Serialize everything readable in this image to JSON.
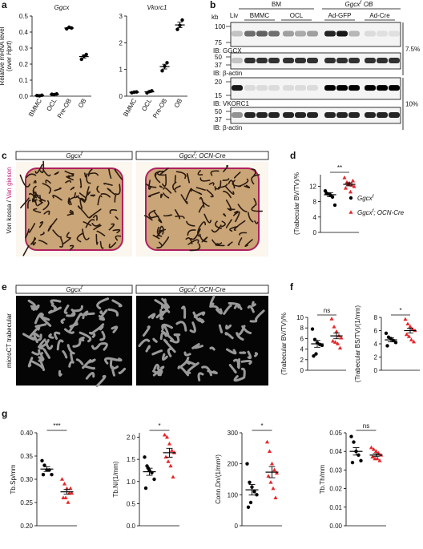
{
  "panel_letters": [
    "a",
    "b",
    "c",
    "d",
    "e",
    "f",
    "g"
  ],
  "chart_data": [
    {
      "type": "dot",
      "title": "Ggcx",
      "ylabel": "Relative mRNA level",
      "ylabel_sub": [
        "(over ",
        "Hprt",
        ")"
      ],
      "ylim": [
        0,
        0.5
      ],
      "yticks": [
        {
          "value": 0,
          "label": "0.0"
        },
        0.1,
        0.2,
        0.3,
        0.4,
        0.5
      ],
      "categories": [
        "BMMC",
        "OCL",
        "Pre-OB",
        "OB"
      ],
      "groups": [
        {
          "color": "#000000",
          "marker": "circle",
          "values": [
            0.004,
            0.002,
            0.006
          ],
          "mean": 0.004,
          "error": 0.001
        },
        {
          "color": "#000000",
          "marker": "circle",
          "values": [
            0.012,
            0.01,
            0.014
          ],
          "mean": 0.012,
          "error": 0.001
        },
        {
          "color": "#000000",
          "marker": "circle",
          "values": [
            0.42,
            0.43,
            0.425
          ],
          "mean": 0.425,
          "error": 0.003
        },
        {
          "color": "#000000",
          "marker": "circle",
          "values": [
            0.23,
            0.25,
            0.26
          ],
          "mean": 0.247,
          "error": 0.009
        }
      ]
    },
    {
      "type": "dot",
      "title": "Vkorc1",
      "ylim": [
        0,
        3
      ],
      "yticks": [
        0,
        1,
        2,
        3
      ],
      "categories": [
        "BMMC",
        "OCL",
        "Pre-OB",
        "OB"
      ],
      "groups": [
        {
          "color": "#000000",
          "marker": "circle",
          "values": [
            0.13,
            0.15,
            0.16
          ],
          "mean": 0.147,
          "error": 0.009
        },
        {
          "color": "#000000",
          "marker": "circle",
          "values": [
            0.12,
            0.17,
            0.2
          ],
          "mean": 0.163,
          "error": 0.023
        },
        {
          "color": "#000000",
          "marker": "circle",
          "values": [
            0.95,
            1.12,
            1.25
          ],
          "mean": 1.107,
          "error": 0.087
        },
        {
          "color": "#000000",
          "marker": "circle",
          "values": [
            2.5,
            2.65,
            2.85
          ],
          "mean": 2.667,
          "error": 0.101
        }
      ]
    },
    {
      "type": "dot",
      "ylabel": "(Trabecular BV/TV)/%",
      "ylim": [
        0,
        15
      ],
      "yticks": [
        0,
        4,
        8,
        12
      ],
      "significance": "**",
      "groups": [
        {
          "color": "#000000",
          "marker": "circle",
          "values": [
            10.8,
            10.0,
            9.8,
            9.2,
            7.1,
            10.2
          ],
          "mean": 9.8,
          "error": 0.55
        },
        {
          "color": "#e8262a",
          "marker": "triangle",
          "values": [
            14.2,
            13.0,
            12.8,
            12.3,
            11.9,
            11.5,
            12.5,
            10.5,
            13.4
          ],
          "mean": 12.5,
          "error": 0.4
        }
      ]
    },
    {
      "type": "dot",
      "ylabel": "(Trabecular BV/TV)/%",
      "ylim": [
        0,
        10
      ],
      "yticks": [
        0,
        2,
        4,
        6,
        8,
        10
      ],
      "significance": "ns",
      "groups": [
        {
          "color": "#000000",
          "marker": "circle",
          "values": [
            7.8,
            5.8,
            5.2,
            4.9,
            4.7,
            2.7,
            3.1
          ],
          "mean": 5.0,
          "error": 0.65
        },
        {
          "color": "#e8262a",
          "marker": "triangle",
          "values": [
            9.7,
            8.2,
            7.3,
            6.5,
            6.1,
            5.5,
            5.3,
            5.0,
            4.2
          ],
          "mean": 6.5,
          "error": 0.55
        }
      ]
    },
    {
      "type": "dot",
      "ylabel": "(Trabecular BS/TV)/(1/mm)",
      "ylim": [
        0,
        8
      ],
      "yticks": [
        0,
        2,
        4,
        6,
        8
      ],
      "significance": "*",
      "groups": [
        {
          "color": "#000000",
          "marker": "circle",
          "values": [
            5.6,
            5.0,
            4.8,
            4.5,
            4.2,
            3.7
          ],
          "mean": 4.6,
          "error": 0.3
        },
        {
          "color": "#e8262a",
          "marker": "triangle",
          "values": [
            7.7,
            7.0,
            6.6,
            6.2,
            6.0,
            5.4,
            5.1,
            4.6,
            4.3
          ],
          "mean": 6.0,
          "error": 0.35
        }
      ]
    },
    {
      "type": "dot",
      "ylabel": "Tb.Sp/mm",
      "ylim": [
        0.2,
        0.4
      ],
      "yticks": [
        {
          "value": 0.2,
          "label": "0.20"
        },
        0.25,
        {
          "value": 0.3,
          "label": "0.30"
        },
        0.35,
        {
          "value": 0.4,
          "label": "0.40"
        }
      ],
      "significance": "***",
      "groups": [
        {
          "color": "#000000",
          "marker": "circle",
          "values": [
            0.34,
            0.33,
            0.32,
            0.32,
            0.31,
            0.31
          ],
          "mean": 0.322,
          "error": 0.005
        },
        {
          "color": "#e8262a",
          "marker": "triangle",
          "values": [
            0.3,
            0.29,
            0.28,
            0.27,
            0.27,
            0.26,
            0.26,
            0.25,
            0.28
          ],
          "mean": 0.273,
          "error": 0.005
        }
      ]
    },
    {
      "type": "dot",
      "ylabel": "Tb.N/(1/mm)",
      "ylim": [
        0,
        2.1
      ],
      "yticks": [
        {
          "value": 0,
          "label": "0.0"
        },
        0.5,
        {
          "value": 1,
          "label": "1.0"
        },
        1.5,
        {
          "value": 2,
          "label": "2.0"
        }
      ],
      "significance": "*",
      "groups": [
        {
          "color": "#000000",
          "marker": "circle",
          "values": [
            1.55,
            1.35,
            1.25,
            1.2,
            1.05,
            0.85,
            1.3
          ],
          "mean": 1.22,
          "error": 0.08
        },
        {
          "color": "#e8262a",
          "marker": "triangle",
          "values": [
            2.05,
            2.0,
            1.85,
            1.7,
            1.65,
            1.55,
            1.45,
            1.35,
            1.1
          ],
          "mean": 1.65,
          "error": 0.1
        }
      ]
    },
    {
      "type": "dot",
      "ylabel": "Conn.Dn/(1/mm³)",
      "ylim": [
        0,
        300
      ],
      "yticks": [
        0,
        100,
        200,
        300
      ],
      "significance": "*",
      "groups": [
        {
          "color": "#000000",
          "marker": "circle",
          "values": [
            200,
            140,
            125,
            110,
            100,
            60,
            75
          ],
          "mean": 116,
          "error": 17
        },
        {
          "color": "#e8262a",
          "marker": "triangle",
          "values": [
            270,
            240,
            200,
            180,
            170,
            160,
            140,
            120,
            90
          ],
          "mean": 173,
          "error": 18
        }
      ]
    },
    {
      "type": "dot",
      "ylabel": "Tb.Th/mm",
      "ylim": [
        0,
        0.05
      ],
      "yticks": [
        {
          "value": 0,
          "label": "0.00"
        },
        0.01,
        0.02,
        0.03,
        0.04,
        0.05
      ],
      "significance": "ns",
      "groups": [
        {
          "color": "#000000",
          "marker": "circle",
          "values": [
            0.048,
            0.045,
            0.04,
            0.038,
            0.035,
            0.034
          ],
          "mean": 0.04,
          "error": 0.002
        },
        {
          "color": "#e8262a",
          "marker": "triangle",
          "values": [
            0.042,
            0.041,
            0.04,
            0.039,
            0.038,
            0.037,
            0.036,
            0.036,
            0.035
          ],
          "mean": 0.038,
          "error": 0.0008
        }
      ]
    }
  ],
  "legend": [
    {
      "text": "Ggcx",
      "sup": "f",
      "color": "#000000",
      "marker": "circle"
    },
    {
      "text": "Ggcx",
      "sup": "f",
      "rest": "; OCN-Cre",
      "color": "#e8262a",
      "marker": "triangle"
    }
  ],
  "blot": {
    "group_headers": [
      {
        "text": "BM"
      },
      {
        "text": "Ggcx",
        "sup": "f",
        "rest": "OB"
      }
    ],
    "lanes": [
      "Liv",
      "BMMC",
      "OCL",
      "Ad-GFP",
      "Ad-Cre"
    ],
    "kda": "kb",
    "strips": [
      {
        "markers": [
          100,
          75
        ],
        "label": "IB: GGCX"
      },
      {
        "markers": [
          50,
          37
        ],
        "label": "IB: β-actin"
      },
      {
        "markers": [
          20,
          15
        ],
        "label": "IB: VKORC1"
      },
      {
        "markers": [
          50,
          37
        ],
        "label": "IB: β-actin"
      }
    ],
    "gels": [
      "7.5%",
      "10%"
    ]
  },
  "panel_c": {
    "headers": [
      {
        "text": "Ggcx",
        "sup": "f"
      },
      {
        "text": "Ggcx",
        "sup": "f",
        "rest": "; OCN-Cre"
      }
    ],
    "side_label": {
      "part1": "Von kossa",
      "sep": " / ",
      "part2": "Van gieson"
    }
  },
  "panel_e": {
    "headers": [
      {
        "text": "Ggcx",
        "sup": "f"
      },
      {
        "text": "Ggcx",
        "sup": "f",
        "rest": "; OCN-Cre"
      }
    ],
    "side_label": "microCT trabecular"
  }
}
